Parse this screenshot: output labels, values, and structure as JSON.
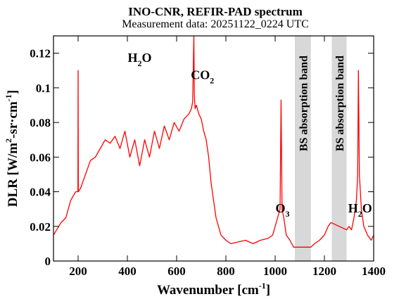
{
  "chart_data": {
    "type": "line",
    "title": "INO-CNR, REFIR-PAD spectrum",
    "subtitle": "Measurement data: 20251122_0224 UTC",
    "xlabel": {
      "main": "Wavenumber [cm",
      "exp": "-1",
      "close": "]"
    },
    "ylabel": {
      "main": "DLR [W/m",
      "exp1": "2",
      "mid": "-sr·cm",
      "exp2": "-1",
      "close": "]"
    },
    "xlim": [
      100,
      1400
    ],
    "ylim": [
      0,
      0.13
    ],
    "xticks": [
      200,
      400,
      600,
      800,
      1000,
      1200,
      1400
    ],
    "yticks": [
      0,
      0.02,
      0.04,
      0.06,
      0.08,
      0.1,
      0.12
    ],
    "yticklabels": [
      "0",
      "0.02",
      "0.04",
      "0.06",
      "0.08",
      "0.1",
      "0.12"
    ],
    "grid": false,
    "line_color": "#ff0000",
    "band_color": "#d8d8d8",
    "shaded_bands": [
      {
        "x_range": [
          1080,
          1145
        ],
        "label": "BS absorption band"
      },
      {
        "x_range": [
          1230,
          1290
        ],
        "label": "BS absorption band"
      }
    ],
    "annotations": [
      {
        "species": "H",
        "sub": "2",
        "tail": "O",
        "x": 450,
        "y": 0.115
      },
      {
        "species": "CO",
        "sub": "2",
        "tail": "",
        "x": 705,
        "y": 0.105
      },
      {
        "species": "O",
        "sub": "3",
        "tail": "",
        "x": 1030,
        "y": 0.028
      },
      {
        "species": "H",
        "sub": "2",
        "tail": "O",
        "x": 1345,
        "y": 0.028
      }
    ],
    "series": [
      {
        "x": [
          100,
          130,
          150,
          170,
          190,
          199,
          200,
          201,
          210,
          230,
          250,
          270,
          290,
          310,
          330,
          350,
          370,
          390,
          410,
          430,
          450,
          470,
          490,
          510,
          530,
          550,
          570,
          590,
          610,
          630,
          650,
          660,
          665,
          670,
          672,
          675,
          680,
          690,
          700,
          710,
          720,
          730,
          740,
          750,
          760,
          780,
          800,
          820,
          850,
          880,
          910,
          940,
          970,
          990,
          1000,
          1010,
          1020,
          1024,
          1028,
          1035,
          1045,
          1060,
          1075,
          1080,
          1145,
          1160,
          1180,
          1200,
          1215,
          1225,
          1230,
          1290,
          1300,
          1310,
          1320,
          1330,
          1335,
          1338,
          1342,
          1350,
          1360,
          1375,
          1390,
          1400
        ],
        "y": [
          0.015,
          0.022,
          0.025,
          0.035,
          0.04,
          0.04,
          0.11,
          0.04,
          0.042,
          0.05,
          0.058,
          0.06,
          0.065,
          0.07,
          0.068,
          0.072,
          0.065,
          0.075,
          0.06,
          0.07,
          0.055,
          0.07,
          0.06,
          0.075,
          0.065,
          0.078,
          0.07,
          0.08,
          0.075,
          0.082,
          0.085,
          0.088,
          0.092,
          0.13,
          0.095,
          0.088,
          0.09,
          0.085,
          0.082,
          0.075,
          0.07,
          0.06,
          0.045,
          0.035,
          0.025,
          0.015,
          0.012,
          0.01,
          0.011,
          0.012,
          0.01,
          0.012,
          0.013,
          0.015,
          0.02,
          0.025,
          0.03,
          0.093,
          0.03,
          0.025,
          0.015,
          0.012,
          0.008,
          0.008,
          0.008,
          0.01,
          0.012,
          0.015,
          0.02,
          0.022,
          0.022,
          0.018,
          0.02,
          0.018,
          0.025,
          0.035,
          0.05,
          0.11,
          0.05,
          0.03,
          0.02,
          0.015,
          0.012,
          0.015
        ]
      }
    ]
  }
}
